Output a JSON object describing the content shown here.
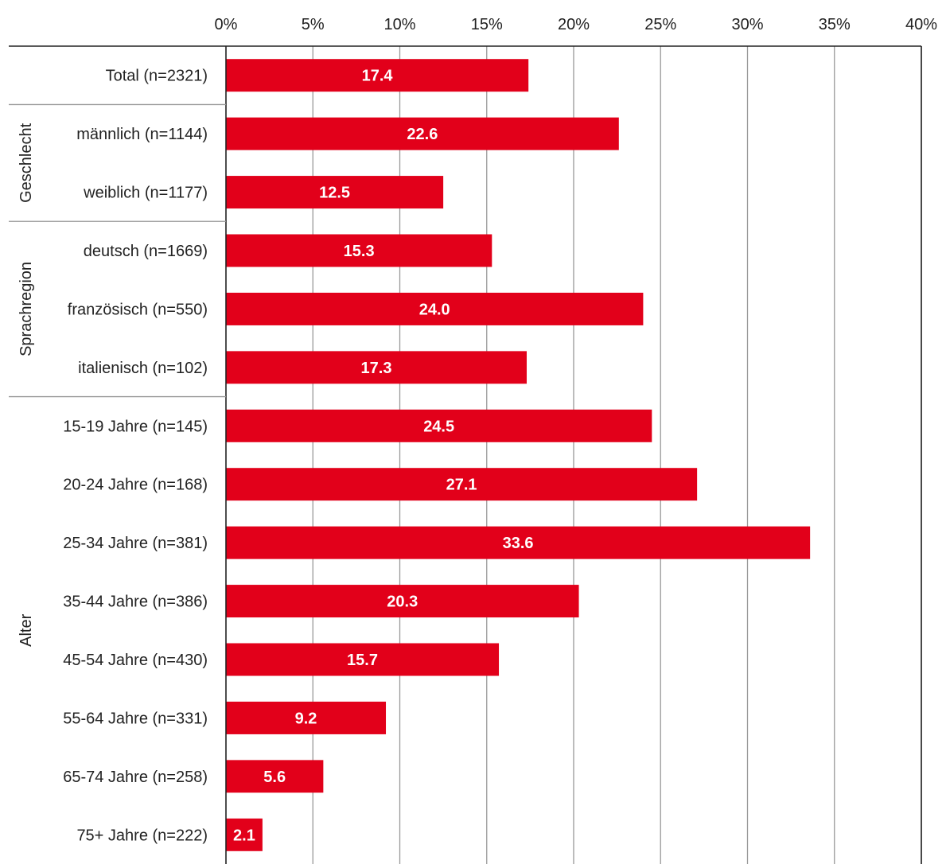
{
  "chart_data": {
    "type": "bar",
    "orientation": "horizontal",
    "categories": [
      "Total (n=2321)",
      "männlich (n=1144)",
      "weiblich (n=1177)",
      "deutsch (n=1669)",
      "französisch (n=550)",
      "italienisch (n=102)",
      "15-19 Jahre (n=145)",
      "20-24 Jahre (n=168)",
      "25-34 Jahre (n=381)",
      "35-44 Jahre (n=386)",
      "45-54 Jahre (n=430)",
      "55-64 Jahre (n=331)",
      "65-74 Jahre (n=258)",
      "75+ Jahre (n=222)"
    ],
    "values": [
      17.4,
      22.6,
      12.5,
      15.3,
      24.0,
      17.3,
      24.5,
      27.1,
      33.6,
      20.3,
      15.7,
      9.2,
      5.6,
      2.1
    ],
    "value_labels": [
      "17.4",
      "22.6",
      "12.5",
      "15.3",
      "24.0",
      "17.3",
      "24.5",
      "27.1",
      "33.6",
      "20.3",
      "15.7",
      "9.2",
      "5.6",
      "2.1"
    ],
    "groups": [
      {
        "label": "",
        "start": 0,
        "end": 0
      },
      {
        "label": "Geschlecht",
        "start": 1,
        "end": 2
      },
      {
        "label": "Sprachregion",
        "start": 3,
        "end": 5
      },
      {
        "label": "Alter",
        "start": 6,
        "end": 13
      }
    ],
    "xlim": [
      0,
      40
    ],
    "xticks": [
      0,
      5,
      10,
      15,
      20,
      25,
      30,
      35,
      40
    ],
    "xtick_labels": [
      "0%",
      "5%",
      "10%",
      "15%",
      "20%",
      "25%",
      "30%",
      "35%",
      "40%"
    ],
    "x_axis_position": "top",
    "grid": true,
    "bar_color": "#e2001a",
    "grid_color": "#999999",
    "title": "",
    "xlabel": "",
    "ylabel": ""
  }
}
